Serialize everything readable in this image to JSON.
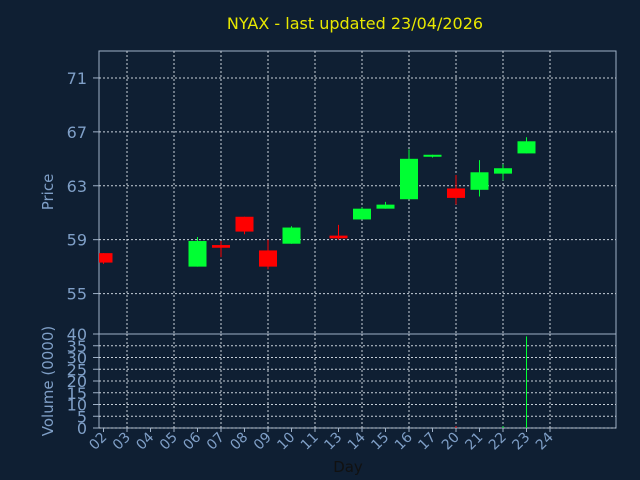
{
  "chart_data": {
    "type": "candlestick",
    "title": "NYAX - last updated 23/04/2026",
    "ylabel": "Price",
    "volume_ylabel": "Volume (0000)",
    "xlabel": "Day",
    "ylim": [
      52,
      73
    ],
    "volume_ylim": [
      0,
      40
    ],
    "y_ticks": [
      55,
      59,
      63,
      67,
      71
    ],
    "volume_ticks": [
      0,
      5,
      10,
      15,
      20,
      25,
      30,
      35,
      40
    ],
    "x_ticks": [
      "02",
      "03",
      "04",
      "05",
      "06",
      "07",
      "08",
      "09",
      "10",
      "11",
      "13",
      "14",
      "15",
      "16",
      "17",
      "20",
      "21",
      "22",
      "23",
      "24"
    ],
    "up_color": "#00ff33",
    "down_color": "#ff0000",
    "candles": [
      {
        "day": "02",
        "open": 58.0,
        "high": 58.0,
        "low": 57.2,
        "close": 57.3
      },
      {
        "day": "06",
        "open": 57.0,
        "high": 59.2,
        "low": 57.0,
        "close": 58.9
      },
      {
        "day": "07",
        "open": 58.6,
        "high": 58.9,
        "low": 57.7,
        "close": 58.4
      },
      {
        "day": "08",
        "open": 60.7,
        "high": 60.7,
        "low": 59.4,
        "close": 59.6
      },
      {
        "day": "09",
        "open": 58.2,
        "high": 59.0,
        "low": 56.8,
        "close": 57.0
      },
      {
        "day": "10",
        "open": 58.7,
        "high": 60.0,
        "low": 58.7,
        "close": 59.9
      },
      {
        "day": "13",
        "open": 59.3,
        "high": 60.1,
        "low": 59.0,
        "close": 59.1
      },
      {
        "day": "14",
        "open": 60.5,
        "high": 61.4,
        "low": 60.5,
        "close": 61.3
      },
      {
        "day": "15",
        "open": 61.3,
        "high": 61.8,
        "low": 61.3,
        "close": 61.6
      },
      {
        "day": "16",
        "open": 62.0,
        "high": 65.7,
        "low": 62.0,
        "close": 65.0
      },
      {
        "day": "17",
        "open": 65.2,
        "high": 65.3,
        "low": 65.1,
        "close": 65.3
      },
      {
        "day": "20",
        "open": 62.8,
        "high": 63.8,
        "low": 61.6,
        "close": 62.1
      },
      {
        "day": "21",
        "open": 62.7,
        "high": 64.9,
        "low": 62.2,
        "close": 64.0
      },
      {
        "day": "22",
        "open": 63.9,
        "high": 64.6,
        "low": 63.4,
        "close": 64.3
      },
      {
        "day": "23",
        "open": 65.4,
        "high": 66.6,
        "low": 65.4,
        "close": 66.3
      }
    ],
    "volume": [
      {
        "day": "20",
        "value": 0.8,
        "color": "#ff0000"
      },
      {
        "day": "22",
        "value": 0.8,
        "color": "#00ff33"
      },
      {
        "day": "23",
        "value": 39,
        "color": "#00ff33"
      }
    ]
  }
}
